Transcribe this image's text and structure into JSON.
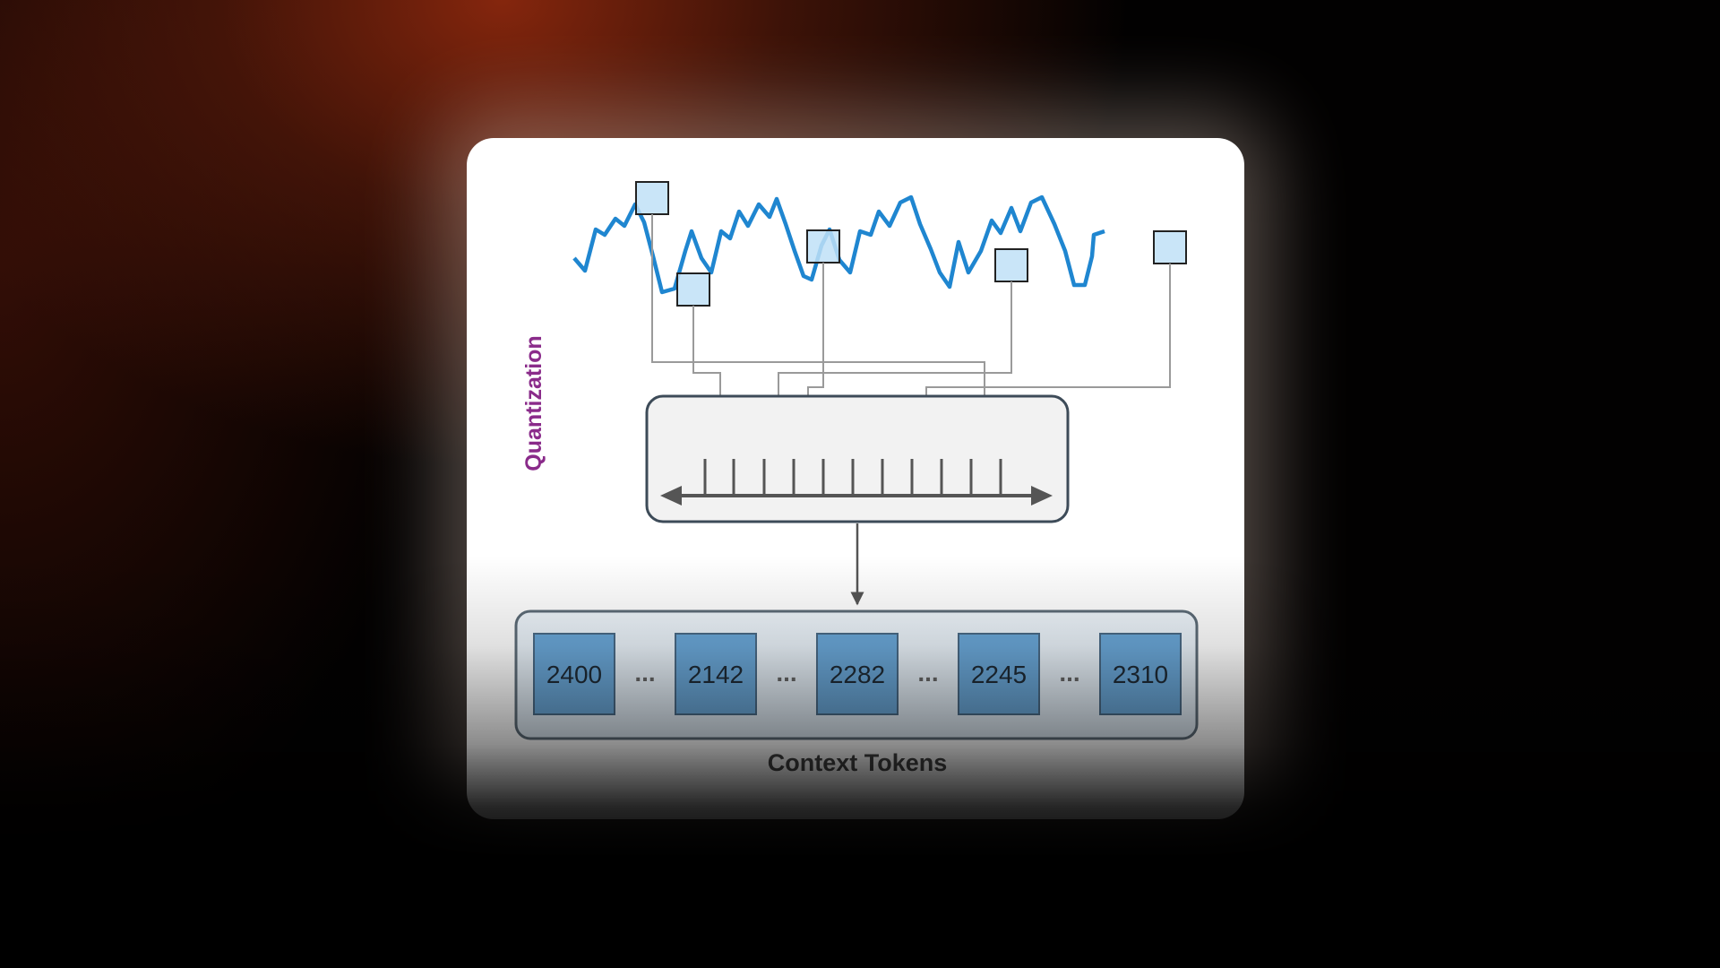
{
  "diagram": {
    "side_label": "Quantization",
    "tokens": [
      "2400",
      "2142",
      "2282",
      "2245",
      "2310"
    ],
    "ellipsis": "...",
    "caption": "Context Tokens",
    "colors": {
      "signal": "#1f86d0",
      "side_label": "#8a2b8a",
      "token_fill": "#6aa7d8",
      "marker_fill": "#bfe0f7",
      "connector": "#9a9a9a"
    }
  }
}
